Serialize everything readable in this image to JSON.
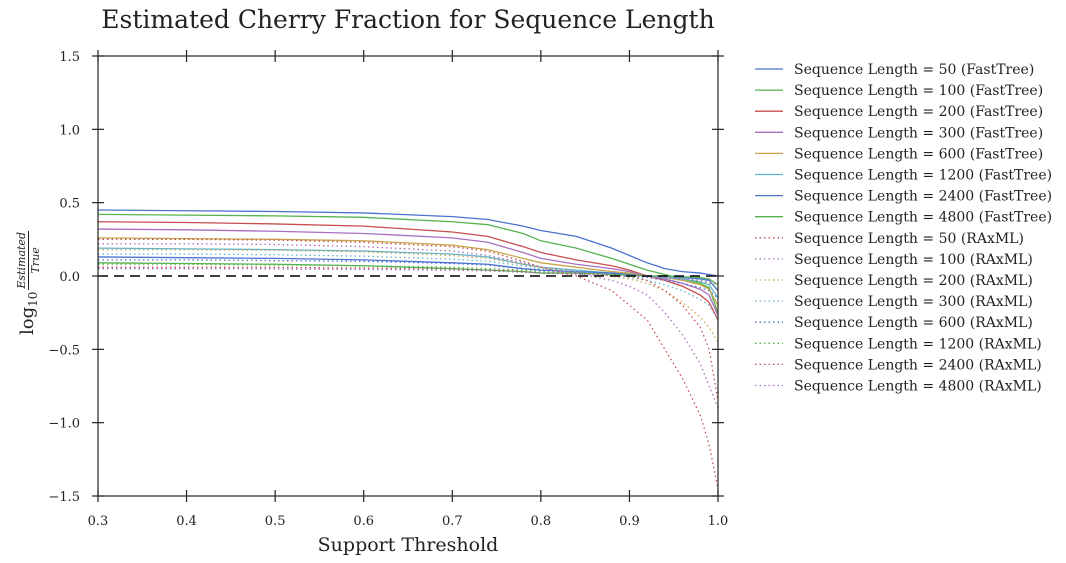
{
  "chart_data": {
    "type": "line",
    "title": "Estimated Cherry Fraction  for Sequence Length",
    "xlabel": "Support Threshold",
    "ylabel": {
      "prefix": "log",
      "subscript": "10",
      "numerator": "Estimated",
      "denominator": "True"
    },
    "xlim": [
      0.3,
      1.0
    ],
    "ylim": [
      -1.5,
      1.5
    ],
    "xticks": [
      "0.3",
      "0.4",
      "0.5",
      "0.6",
      "0.7",
      "0.8",
      "0.9",
      "1.0"
    ],
    "yticks": [
      "1.5",
      "1.0",
      "0.5",
      "0.0",
      "−0.5",
      "−1.0",
      "−1.5"
    ],
    "reference_line": {
      "y": 0.0,
      "style": "dashed",
      "color": "#000000"
    },
    "grid": false,
    "legend_position": "outside right",
    "x": [
      0.3,
      0.4,
      0.5,
      0.6,
      0.7,
      0.74,
      0.78,
      0.8,
      0.84,
      0.88,
      0.9,
      0.92,
      0.94,
      0.96,
      0.98,
      0.99,
      1.0
    ],
    "series": [
      {
        "name": "Sequence Length = 50 (FastTree)",
        "color": "#4c72d0",
        "style": "solid",
        "values": [
          0.45,
          0.445,
          0.44,
          0.43,
          0.405,
          0.385,
          0.34,
          0.31,
          0.27,
          0.19,
          0.14,
          0.09,
          0.05,
          0.03,
          0.02,
          0.01,
          0.0
        ]
      },
      {
        "name": "Sequence Length = 100 (FastTree)",
        "color": "#55b24e",
        "style": "solid",
        "values": [
          0.42,
          0.415,
          0.41,
          0.4,
          0.37,
          0.35,
          0.29,
          0.24,
          0.19,
          0.12,
          0.08,
          0.04,
          0.01,
          -0.02,
          -0.05,
          -0.08,
          -0.25
        ]
      },
      {
        "name": "Sequence Length = 200 (FastTree)",
        "color": "#c74e4e",
        "style": "solid",
        "values": [
          0.37,
          0.365,
          0.355,
          0.34,
          0.3,
          0.27,
          0.2,
          0.16,
          0.11,
          0.07,
          0.04,
          0.0,
          -0.03,
          -0.07,
          -0.13,
          -0.18,
          -0.3
        ]
      },
      {
        "name": "Sequence Length = 300 (FastTree)",
        "color": "#a86fc0",
        "style": "solid",
        "values": [
          0.32,
          0.315,
          0.305,
          0.29,
          0.26,
          0.23,
          0.16,
          0.12,
          0.08,
          0.05,
          0.03,
          0.0,
          -0.02,
          -0.05,
          -0.09,
          -0.13,
          -0.27
        ]
      },
      {
        "name": "Sequence Length = 600 (FastTree)",
        "color": "#c7a54c",
        "style": "solid",
        "values": [
          0.26,
          0.255,
          0.25,
          0.24,
          0.21,
          0.18,
          0.12,
          0.09,
          0.06,
          0.03,
          0.02,
          0.0,
          -0.01,
          -0.03,
          -0.06,
          -0.09,
          -0.2
        ]
      },
      {
        "name": "Sequence Length = 1200 (FastTree)",
        "color": "#64b5cd",
        "style": "solid",
        "values": [
          0.19,
          0.185,
          0.18,
          0.17,
          0.15,
          0.13,
          0.08,
          0.06,
          0.04,
          0.02,
          0.01,
          0.0,
          -0.01,
          -0.02,
          -0.04,
          -0.06,
          -0.15
        ]
      },
      {
        "name": "Sequence Length = 2400 (FastTree)",
        "color": "#4c72d0",
        "style": "solid",
        "values": [
          0.13,
          0.125,
          0.12,
          0.11,
          0.09,
          0.08,
          0.05,
          0.04,
          0.03,
          0.02,
          0.01,
          0.0,
          0.0,
          -0.01,
          -0.02,
          -0.03,
          -0.1
        ]
      },
      {
        "name": "Sequence Length = 4800 (FastTree)",
        "color": "#55b24e",
        "style": "solid",
        "values": [
          0.09,
          0.085,
          0.08,
          0.07,
          0.05,
          0.04,
          0.03,
          0.02,
          0.02,
          0.01,
          0.005,
          0.0,
          0.0,
          -0.005,
          -0.01,
          -0.02,
          -0.06
        ]
      },
      {
        "name": "Sequence Length = 50 (RAxML)",
        "color": "#c74e4e",
        "style": "dotted",
        "values": [
          0.25,
          0.25,
          0.245,
          0.23,
          0.2,
          0.17,
          0.1,
          0.06,
          0.0,
          -0.1,
          -0.2,
          -0.3,
          -0.5,
          -0.7,
          -0.95,
          -1.15,
          -1.45
        ]
      },
      {
        "name": "Sequence Length = 100 (RAxML)",
        "color": "#a86fc0",
        "style": "dotted",
        "values": [
          0.22,
          0.22,
          0.215,
          0.2,
          0.17,
          0.14,
          0.09,
          0.06,
          0.02,
          -0.03,
          -0.07,
          -0.13,
          -0.25,
          -0.4,
          -0.6,
          -0.75,
          -0.9
        ]
      },
      {
        "name": "Sequence Length = 200 (RAxML)",
        "color": "#c7a54c",
        "style": "dotted",
        "values": [
          0.18,
          0.18,
          0.175,
          0.165,
          0.14,
          0.12,
          0.08,
          0.06,
          0.03,
          0.0,
          -0.02,
          -0.05,
          -0.1,
          -0.18,
          -0.28,
          -0.35,
          -0.45
        ]
      },
      {
        "name": "Sequence Length = 300 (RAxML)",
        "color": "#64b5cd",
        "style": "dotted",
        "values": [
          0.15,
          0.15,
          0.145,
          0.135,
          0.115,
          0.1,
          0.07,
          0.05,
          0.03,
          0.01,
          -0.01,
          -0.03,
          -0.06,
          -0.1,
          -0.16,
          -0.2,
          -0.3
        ]
      },
      {
        "name": "Sequence Length = 600 (RAxML)",
        "color": "#4c72d0",
        "style": "dotted",
        "values": [
          0.11,
          0.11,
          0.105,
          0.1,
          0.085,
          0.075,
          0.05,
          0.04,
          0.025,
          0.01,
          0.0,
          -0.01,
          -0.03,
          -0.05,
          -0.08,
          -0.1,
          -0.15
        ]
      },
      {
        "name": "Sequence Length = 1200 (RAxML)",
        "color": "#55b24e",
        "style": "dotted",
        "values": [
          0.08,
          0.08,
          0.075,
          0.07,
          0.06,
          0.05,
          0.04,
          0.03,
          0.02,
          0.01,
          0.0,
          0.0,
          -0.01,
          -0.02,
          -0.04,
          -0.05,
          -0.08
        ]
      },
      {
        "name": "Sequence Length = 2400 (RAxML)",
        "color": "#c74e4e",
        "style": "dotted",
        "values": [
          0.06,
          0.06,
          0.058,
          0.055,
          0.045,
          0.04,
          0.03,
          0.02,
          0.015,
          0.005,
          0.0,
          -0.03,
          -0.1,
          -0.2,
          -0.35,
          -0.5,
          -0.85
        ]
      },
      {
        "name": "Sequence Length = 4800 (RAxML)",
        "color": "#a86fc0",
        "style": "dotted",
        "values": [
          0.05,
          0.05,
          0.048,
          0.045,
          0.04,
          0.035,
          0.025,
          0.02,
          0.012,
          0.005,
          0.0,
          -0.005,
          -0.01,
          -0.02,
          -0.03,
          -0.04,
          -0.06
        ]
      }
    ]
  }
}
